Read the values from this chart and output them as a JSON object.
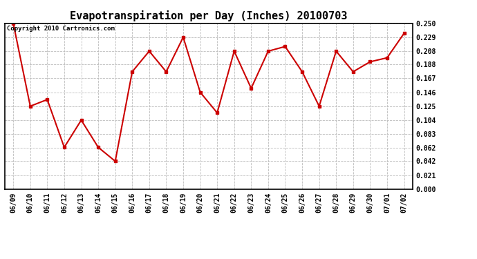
{
  "title": "Evapotranspiration per Day (Inches) 20100703",
  "copyright_text": "Copyright 2010 Cartronics.com",
  "x_labels": [
    "06/09",
    "06/10",
    "06/11",
    "06/12",
    "06/13",
    "06/14",
    "06/15",
    "06/16",
    "06/17",
    "06/18",
    "06/19",
    "06/20",
    "06/21",
    "06/22",
    "06/23",
    "06/24",
    "06/25",
    "06/26",
    "06/27",
    "06/28",
    "06/29",
    "06/30",
    "07/01",
    "07/02"
  ],
  "y_values": [
    0.25,
    0.125,
    0.135,
    0.063,
    0.104,
    0.063,
    0.042,
    0.177,
    0.208,
    0.177,
    0.229,
    0.146,
    0.115,
    0.208,
    0.152,
    0.208,
    0.215,
    0.177,
    0.125,
    0.208,
    0.177,
    0.192,
    0.198,
    0.235
  ],
  "line_color": "#cc0000",
  "marker": "s",
  "marker_size": 3,
  "ylim": [
    0.0,
    0.25
  ],
  "yticks": [
    0.0,
    0.021,
    0.042,
    0.062,
    0.083,
    0.104,
    0.125,
    0.146,
    0.167,
    0.188,
    0.208,
    0.229,
    0.25
  ],
  "background_color": "#ffffff",
  "grid_color": "#bbbbbb",
  "title_fontsize": 11,
  "tick_fontsize": 7,
  "copyright_fontsize": 6.5
}
